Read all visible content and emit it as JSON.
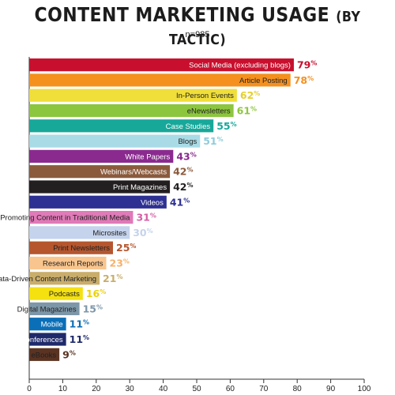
{
  "title": "CONTENT MARKETING USAGE",
  "title_suffix": "(BY TACTIC)",
  "subtitle": "n=985",
  "chart_data": {
    "type": "bar",
    "orientation": "horizontal",
    "xlim": [
      0,
      100
    ],
    "xticks": [
      0,
      10,
      20,
      30,
      40,
      50,
      60,
      70,
      80,
      90,
      100
    ],
    "categories": [
      "Social Media (excluding blogs)",
      "Article Posting",
      "In-Person Events",
      "eNewsletters",
      "Case Studies",
      "Blogs",
      "White Papers",
      "Webinars/Webcasts",
      "Print Magazines",
      "Videos",
      "Promoting Content in Traditional Media",
      "Microsites",
      "Print Newsletters",
      "Research Reports",
      "Data-Driven Content Marketing",
      "Podcasts",
      "Digital Magazines",
      "Mobile",
      "Virtual Conferences",
      "eBooks"
    ],
    "values": [
      79,
      78,
      62,
      61,
      55,
      51,
      43,
      42,
      42,
      41,
      31,
      30,
      25,
      23,
      21,
      16,
      15,
      11,
      11,
      9
    ],
    "value_suffix": "%",
    "colors": [
      "#c8102e",
      "#f5901e",
      "#f0de3a",
      "#8cc63f",
      "#17a89a",
      "#a8dbe6",
      "#8a2a8f",
      "#8b5a3c",
      "#231f20",
      "#2e3192",
      "#e07ab8",
      "#c5d3ec",
      "#b5562e",
      "#f8c58e",
      "#c9ad6a",
      "#f4e10f",
      "#7d97a8",
      "#0b6fb8",
      "#1f2a6b",
      "#5a3322"
    ],
    "label_colors": [
      "#ffffff",
      "#222222",
      "#222222",
      "#222222",
      "#ffffff",
      "#222222",
      "#ffffff",
      "#ffffff",
      "#ffffff",
      "#ffffff",
      "#222222",
      "#222222",
      "#222222",
      "#222222",
      "#222222",
      "#222222",
      "#222222",
      "#ffffff",
      "#ffffff",
      "#222222"
    ],
    "pct_colors": [
      "#c8102e",
      "#f5901e",
      "#e6cf2a",
      "#8cc63f",
      "#17a89a",
      "#8fcbdb",
      "#8a2a8f",
      "#8b5a3c",
      "#231f20",
      "#2e3192",
      "#d45fa5",
      "#c5d3ec",
      "#b5562e",
      "#f5b26a",
      "#c9ad6a",
      "#ecd20a",
      "#7d97a8",
      "#0b6fb8",
      "#1f2a6b",
      "#5a3322"
    ]
  }
}
